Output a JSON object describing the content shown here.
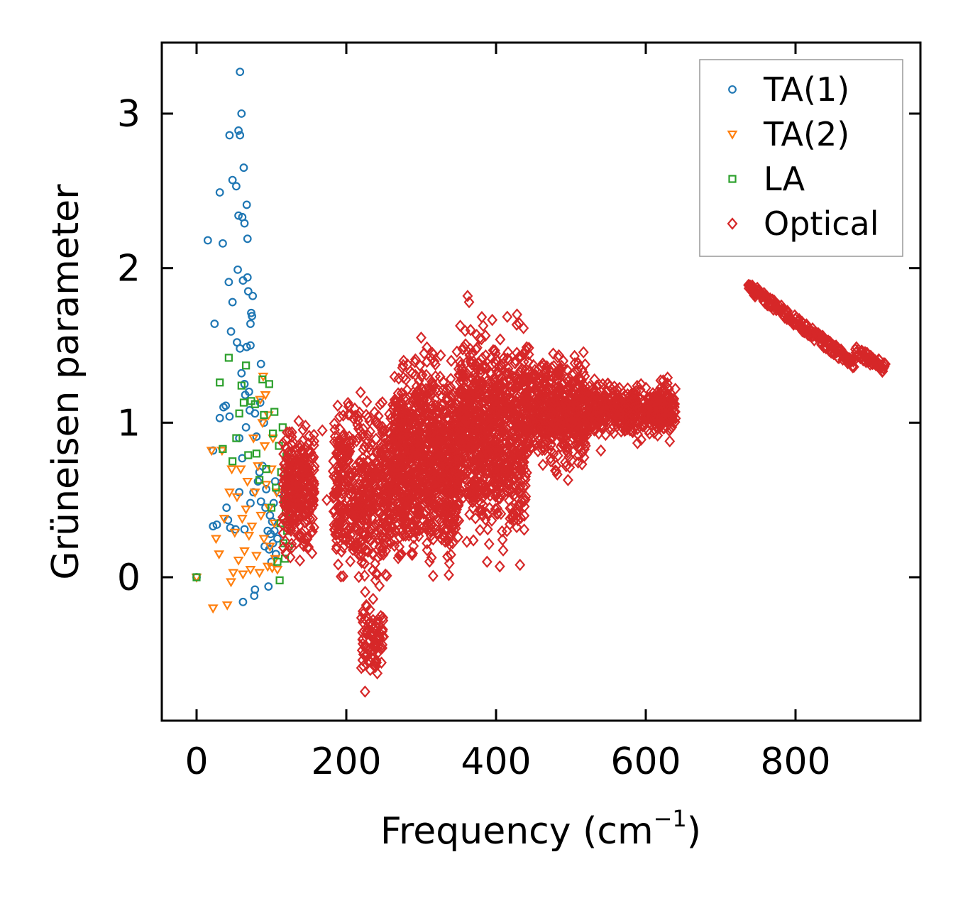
{
  "chart_data": {
    "type": "scatter",
    "title": "",
    "xlabel": "Frequency (cm",
    "xlabel_sup": "−1",
    "xlabel_close": ")",
    "ylabel": "Grüneisen parameter",
    "xlim": [
      -45,
      960
    ],
    "ylim": [
      -0.93,
      3.45
    ],
    "xticks": [
      0,
      200,
      400,
      600,
      800
    ],
    "yticks": [
      0,
      1,
      2,
      3
    ],
    "legend_position": "top-right",
    "series": [
      {
        "name": "TA(1)",
        "marker": "circle",
        "color": "#1f77b4",
        "points": [
          [
            0,
            0
          ],
          [
            15,
            2.18
          ],
          [
            22,
            0.82
          ],
          [
            22,
            0.33
          ],
          [
            24,
            1.64
          ],
          [
            27,
            0.34
          ],
          [
            31,
            2.49
          ],
          [
            31,
            1.03
          ],
          [
            35,
            2.16
          ],
          [
            36,
            1.1
          ],
          [
            39,
            1.11
          ],
          [
            40,
            0.45
          ],
          [
            42,
            0.37
          ],
          [
            43,
            1.91
          ],
          [
            44,
            2.86
          ],
          [
            44,
            1.04
          ],
          [
            45,
            0.32
          ],
          [
            46,
            1.59
          ],
          [
            48,
            1.78
          ],
          [
            48,
            2.57
          ],
          [
            52,
            0.31
          ],
          [
            53,
            2.53
          ],
          [
            54,
            1.52
          ],
          [
            55,
            1.99
          ],
          [
            56,
            2.34
          ],
          [
            56,
            2.89
          ],
          [
            57,
            0.55
          ],
          [
            57,
            0.9
          ],
          [
            58,
            2.86
          ],
          [
            58,
            3.27
          ],
          [
            58,
            1.48
          ],
          [
            60,
            3.0
          ],
          [
            60,
            1.32
          ],
          [
            61,
            2.33
          ],
          [
            61,
            0.77
          ],
          [
            62,
            1.92
          ],
          [
            62,
            -0.16
          ],
          [
            63,
            2.65
          ],
          [
            64,
            1.25
          ],
          [
            64,
            2.29
          ],
          [
            64,
            0.31
          ],
          [
            65,
            1.18
          ],
          [
            66,
            0.97
          ],
          [
            67,
            2.41
          ],
          [
            67,
            1.49
          ],
          [
            68,
            1.94
          ],
          [
            68,
            2.19
          ],
          [
            69,
            1.85
          ],
          [
            70,
            1.2
          ],
          [
            71,
            1.08
          ],
          [
            72,
            1.64
          ],
          [
            72,
            1.5
          ],
          [
            72,
            0.48
          ],
          [
            73,
            1.71
          ],
          [
            74,
            1.69
          ],
          [
            75,
            1.82
          ],
          [
            76,
            0.55
          ],
          [
            77,
            -0.12
          ],
          [
            78,
            1.06
          ],
          [
            78,
            -0.08
          ],
          [
            80,
            0.91
          ],
          [
            82,
            0.62
          ],
          [
            84,
            0.68
          ],
          [
            85,
            1.13
          ],
          [
            86,
            1.38
          ],
          [
            86,
            0.49
          ],
          [
            88,
            0.72
          ],
          [
            90,
            1.0
          ],
          [
            91,
            0.2
          ],
          [
            92,
            0.45
          ],
          [
            93,
            0.57
          ],
          [
            95,
            0.3
          ],
          [
            96,
            -0.06
          ],
          [
            97,
            0.18
          ],
          [
            98,
            0.4
          ],
          [
            99,
            0.28
          ],
          [
            100,
            0.1
          ],
          [
            101,
            0.36
          ],
          [
            102,
            0.22
          ],
          [
            103,
            0.48
          ],
          [
            104,
            0.3
          ],
          [
            105,
            0.62
          ],
          [
            106,
            0.15
          ],
          [
            108,
            0.25
          ],
          [
            110,
            0.55
          ]
        ]
      },
      {
        "name": "TA(2)",
        "marker": "triangle-down",
        "color": "#ff7f0e",
        "points": [
          [
            0,
            0
          ],
          [
            20,
            0.82
          ],
          [
            22,
            -0.2
          ],
          [
            26,
            0.25
          ],
          [
            30,
            0.15
          ],
          [
            34,
            0.82
          ],
          [
            37,
            0.38
          ],
          [
            41,
            -0.18
          ],
          [
            44,
            0.55
          ],
          [
            46,
            -0.03
          ],
          [
            47,
            0.7
          ],
          [
            49,
            0.03
          ],
          [
            51,
            0.29
          ],
          [
            54,
            0.52
          ],
          [
            56,
            0.11
          ],
          [
            59,
            0.7
          ],
          [
            61,
            0.38
          ],
          [
            62,
            0.02
          ],
          [
            64,
            0.17
          ],
          [
            66,
            0.44
          ],
          [
            68,
            0.62
          ],
          [
            70,
            0.27
          ],
          [
            72,
            0.05
          ],
          [
            74,
            0.33
          ],
          [
            76,
            0.9
          ],
          [
            78,
            0.55
          ],
          [
            80,
            0.14
          ],
          [
            82,
            0.72
          ],
          [
            84,
            0.03
          ],
          [
            85,
            1.15
          ],
          [
            86,
            0.4
          ],
          [
            88,
            1.0
          ],
          [
            89,
            1.3
          ],
          [
            90,
            0.25
          ],
          [
            91,
            0.85
          ],
          [
            92,
            1.18
          ],
          [
            93,
            0.6
          ],
          [
            95,
            0.07
          ],
          [
            96,
            1.05
          ],
          [
            97,
            0.45
          ],
          [
            98,
            0.2
          ],
          [
            100,
            0.7
          ],
          [
            101,
            0.06
          ],
          [
            102,
            0.9
          ],
          [
            104,
            0.35
          ],
          [
            105,
            0.12
          ],
          [
            107,
            0.55
          ],
          [
            108,
            0.05
          ]
        ]
      },
      {
        "name": "LA",
        "marker": "square",
        "color": "#2ca02c",
        "points": [
          [
            0,
            0
          ],
          [
            31,
            1.26
          ],
          [
            35,
            0.83
          ],
          [
            43,
            1.42
          ],
          [
            48,
            0.75
          ],
          [
            53,
            0.9
          ],
          [
            57,
            1.06
          ],
          [
            60,
            1.24
          ],
          [
            63,
            1.13
          ],
          [
            66,
            1.37
          ],
          [
            69,
            0.79
          ],
          [
            73,
            1.14
          ],
          [
            78,
            1.12
          ],
          [
            80,
            0.8
          ],
          [
            84,
            0.63
          ],
          [
            88,
            1.28
          ],
          [
            90,
            1.05
          ],
          [
            93,
            0.7
          ],
          [
            97,
            1.25
          ],
          [
            100,
            0.45
          ],
          [
            102,
            0.93
          ],
          [
            104,
            1.07
          ],
          [
            106,
            0.58
          ],
          [
            108,
            0.1
          ],
          [
            110,
            0.85
          ],
          [
            111,
            -0.02
          ],
          [
            112,
            0.35
          ],
          [
            113,
            0.68
          ],
          [
            115,
            0.97
          ],
          [
            116,
            0.22
          ],
          [
            117,
            0.5
          ],
          [
            118,
            0.12
          ],
          [
            119,
            0.42
          ],
          [
            120,
            0.78
          ],
          [
            121,
            0.3
          ],
          [
            122,
            0.55
          ],
          [
            123,
            0.2
          ],
          [
            124,
            0.38
          ]
        ]
      },
      {
        "name": "Optical",
        "marker": "diamond",
        "color": "#d62728",
        "clusters": [
          {
            "x_range": [
              115,
              158
            ],
            "y_range": [
              0.02,
              1.12
            ],
            "count": 280
          },
          {
            "x_range": [
              182,
              262
            ],
            "y_range": [
              -0.2,
              1.3
            ],
            "count": 520
          },
          {
            "x_range": [
              220,
              250
            ],
            "y_range": [
              -0.72,
              -0.1
            ],
            "count": 80
          },
          {
            "x_range": [
              262,
              350
            ],
            "y_range": [
              -0.1,
              1.62
            ],
            "count": 950
          },
          {
            "x_range": [
              350,
              440
            ],
            "y_range": [
              0.05,
              1.8
            ],
            "count": 900
          },
          {
            "x_range": [
              440,
              520
            ],
            "y_range": [
              0.6,
              1.55
            ],
            "count": 520
          },
          {
            "x_range": [
              520,
              640
            ],
            "y_range": [
              0.85,
              1.32
            ],
            "count": 480
          }
        ],
        "bands": [
          {
            "x_start": 737,
            "x_end": 878,
            "y_start": 1.88,
            "y_end": 1.38,
            "count": 190
          },
          {
            "x_start": 880,
            "x_end": 920,
            "y_start": 1.47,
            "y_end": 1.35,
            "count": 60
          }
        ],
        "outliers": [
          [
            155,
            0.38
          ],
          [
            168,
            0.95
          ],
          [
            174,
            0.5
          ],
          [
            205,
            1.05
          ],
          [
            225,
            -0.74
          ],
          [
            232,
            -0.6
          ],
          [
            240,
            -0.32
          ],
          [
            300,
            1.55
          ],
          [
            315,
            1.45
          ],
          [
            342,
            0.22
          ],
          [
            362,
            1.82
          ],
          [
            364,
            1.78
          ],
          [
            366,
            1.6
          ],
          [
            368,
            1.45
          ],
          [
            388,
            0.1
          ],
          [
            405,
            0.07
          ],
          [
            428,
            1.7
          ],
          [
            432,
            0.08
          ],
          [
            450,
            1.3
          ],
          [
            518,
            1.12
          ],
          [
            540,
            0.82
          ],
          [
            566,
            1.06
          ],
          [
            605,
            0.93
          ],
          [
            632,
            0.88
          ]
        ]
      }
    ]
  }
}
